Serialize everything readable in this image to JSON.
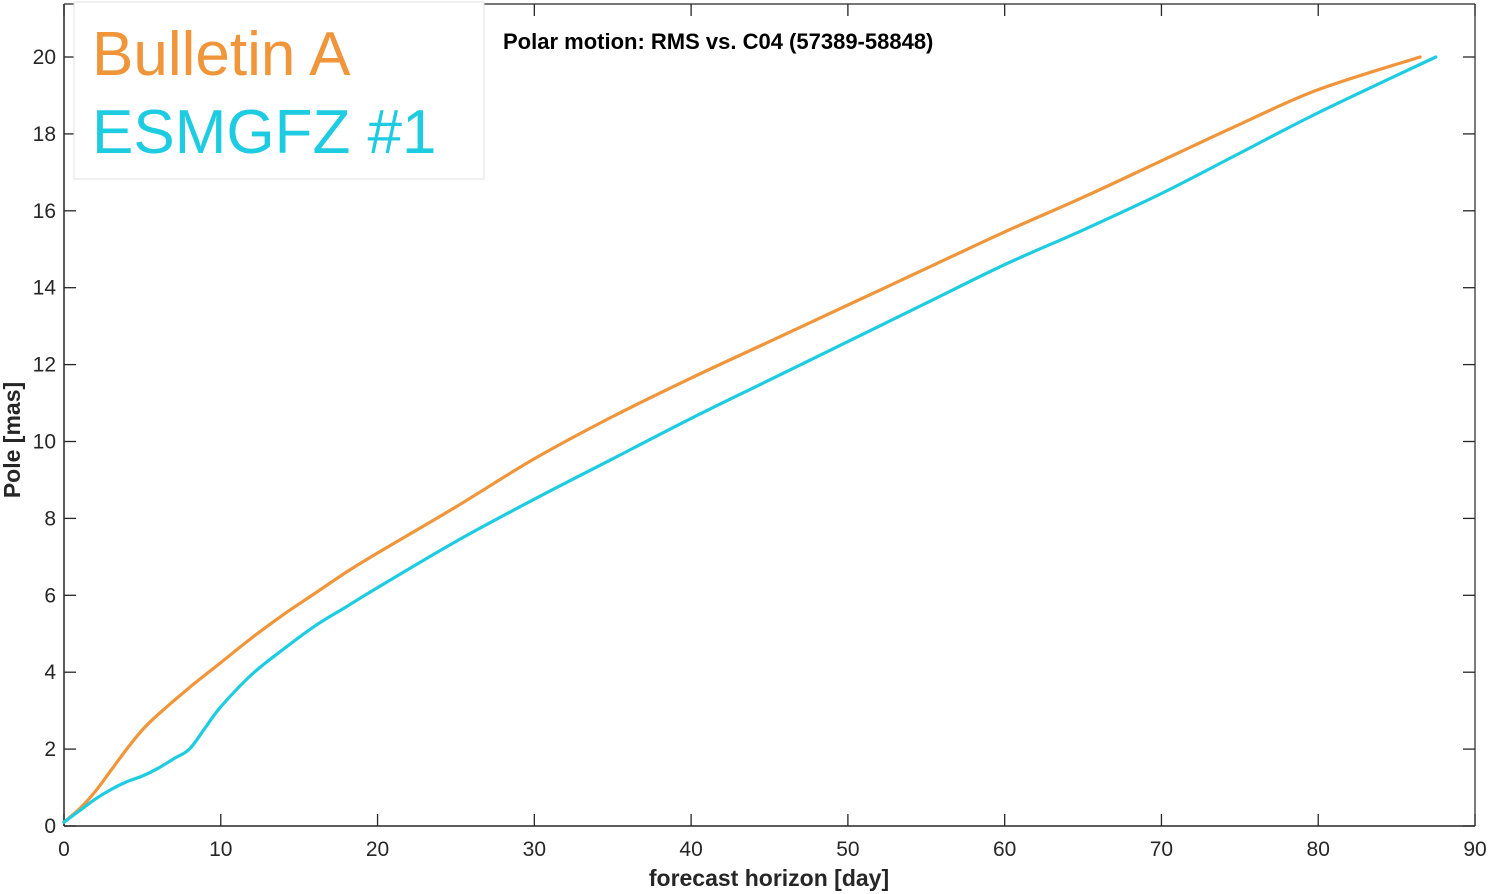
{
  "chart_data": {
    "type": "line",
    "title": "Polar motion: RMS vs. C04 (57389-58848)",
    "xlabel": "forecast horizon [day]",
    "ylabel": "Pole [mas]",
    "xlim": [
      0,
      90
    ],
    "ylim": [
      0,
      20
    ],
    "xticks": [
      "0",
      "10",
      "20",
      "30",
      "40",
      "50",
      "60",
      "70",
      "80",
      "90"
    ],
    "yticks": [
      "0",
      "2",
      "4",
      "6",
      "8",
      "10",
      "12",
      "14",
      "16",
      "18",
      "20"
    ],
    "grid": false,
    "legend_position": "top-left",
    "series": [
      {
        "name": "Bulletin A",
        "color": "#F0953A",
        "x": [
          0,
          1,
          2,
          3,
          4,
          5,
          6,
          8,
          10,
          12,
          14,
          16,
          18,
          20,
          25,
          30,
          35,
          40,
          45,
          50,
          55,
          60,
          65,
          70,
          75,
          80,
          86.5
        ],
        "y": [
          0.1,
          0.45,
          0.9,
          1.45,
          2.0,
          2.5,
          2.9,
          3.6,
          4.25,
          4.9,
          5.5,
          6.05,
          6.6,
          7.1,
          8.3,
          9.55,
          10.65,
          11.65,
          12.6,
          13.55,
          14.5,
          15.45,
          16.35,
          17.3,
          18.25,
          19.15,
          20.0
        ]
      },
      {
        "name": "ESMGFZ #1",
        "color": "#1DCCE0",
        "x": [
          0,
          1,
          2,
          3,
          4,
          5,
          6,
          7,
          8,
          9,
          10,
          12,
          14,
          16,
          18,
          20,
          25,
          30,
          35,
          40,
          45,
          50,
          55,
          60,
          65,
          70,
          75,
          80,
          87.5
        ],
        "y": [
          0.1,
          0.4,
          0.7,
          0.95,
          1.15,
          1.3,
          1.5,
          1.75,
          2.0,
          2.55,
          3.1,
          3.95,
          4.6,
          5.2,
          5.7,
          6.2,
          7.4,
          8.5,
          9.55,
          10.6,
          11.6,
          12.6,
          13.6,
          14.6,
          15.5,
          16.45,
          17.5,
          18.55,
          20.0
        ]
      }
    ]
  }
}
